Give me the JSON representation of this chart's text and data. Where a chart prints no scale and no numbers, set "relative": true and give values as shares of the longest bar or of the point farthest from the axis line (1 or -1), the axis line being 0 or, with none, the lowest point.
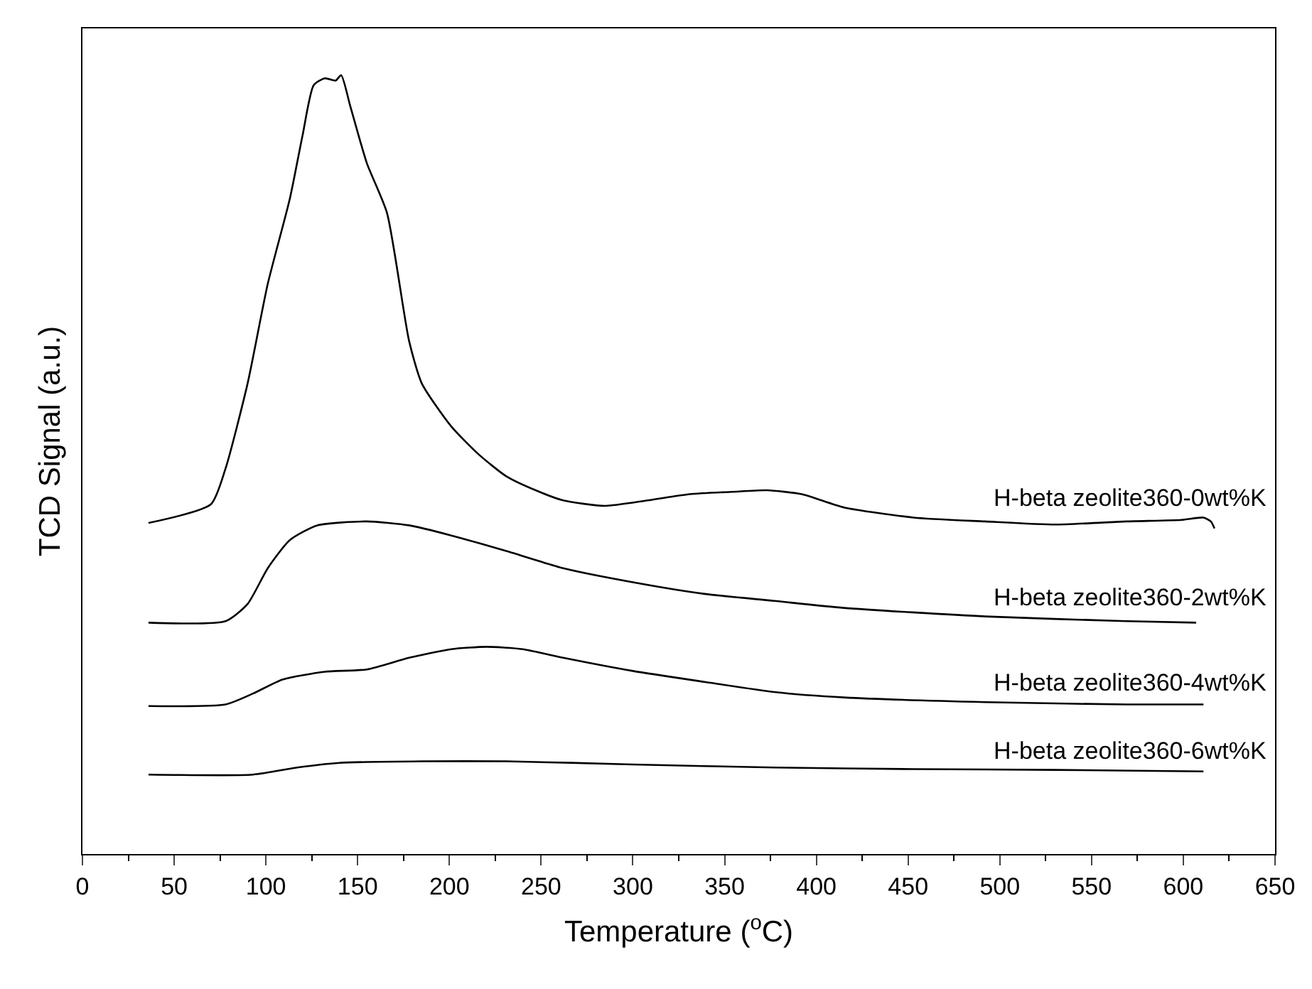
{
  "chart_data": {
    "type": "line",
    "relative": true,
    "xlabel": "Temperature ($^{o}$C)",
    "ylabel": "TCD Signal (a.u.)",
    "xlim": [
      0,
      650
    ],
    "xticks": [
      0,
      50,
      100,
      150,
      200,
      250,
      300,
      350,
      400,
      450,
      500,
      550,
      600,
      650
    ],
    "legend": false,
    "marker": "none",
    "line_style": "solid",
    "tick_labels": "x",
    "series": [
      {
        "name": "H-beta zeolite360-0wt%K",
        "color": "#000000",
        "x": [
          36,
          70,
          78,
          90,
          101,
          113,
          120,
          126,
          132,
          138,
          141,
          146,
          155,
          166,
          178,
          185,
          201,
          216,
          231,
          247,
          262,
          285,
          308,
          331,
          354,
          373,
          392,
          415,
          453,
          492,
          530,
          569,
          599,
          611,
          615,
          617
        ],
        "values": [
          0.425,
          0.449,
          0.495,
          0.604,
          0.732,
          0.841,
          0.923,
          0.987,
          0.996,
          0.993,
          1.0,
          0.96,
          0.887,
          0.823,
          0.659,
          0.604,
          0.549,
          0.513,
          0.485,
          0.467,
          0.454,
          0.447,
          0.454,
          0.462,
          0.465,
          0.467,
          0.462,
          0.445,
          0.432,
          0.427,
          0.423,
          0.427,
          0.429,
          0.432,
          0.427,
          0.418
        ]
      },
      {
        "name": "H-beta zeolite360-2wt%K",
        "color": "#000000",
        "x": [
          36,
          78,
          90,
          101,
          113,
          128,
          155,
          178,
          201,
          231,
          262,
          300,
          339,
          377,
          415,
          492,
          569,
          607
        ],
        "values": [
          0.297,
          0.299,
          0.321,
          0.367,
          0.403,
          0.422,
          0.427,
          0.422,
          0.409,
          0.389,
          0.367,
          0.349,
          0.334,
          0.325,
          0.316,
          0.305,
          0.299,
          0.297
        ]
      },
      {
        "name": "H-beta zeolite360-4wt%K",
        "color": "#000000",
        "x": [
          36,
          78,
          93,
          109,
          132,
          155,
          178,
          201,
          220,
          240,
          262,
          300,
          339,
          377,
          415,
          492,
          569,
          611
        ],
        "values": [
          0.19,
          0.192,
          0.206,
          0.224,
          0.234,
          0.237,
          0.252,
          0.263,
          0.266,
          0.263,
          0.252,
          0.235,
          0.221,
          0.208,
          0.201,
          0.195,
          0.192,
          0.192
        ]
      },
      {
        "name": "H-beta zeolite360-6wt%K",
        "color": "#000000",
        "x": [
          36,
          93,
          117,
          140,
          185,
          231,
          300,
          377,
          453,
          530,
          611
        ],
        "values": [
          0.102,
          0.102,
          0.111,
          0.117,
          0.119,
          0.119,
          0.115,
          0.111,
          0.109,
          0.108,
          0.106
        ]
      }
    ]
  }
}
